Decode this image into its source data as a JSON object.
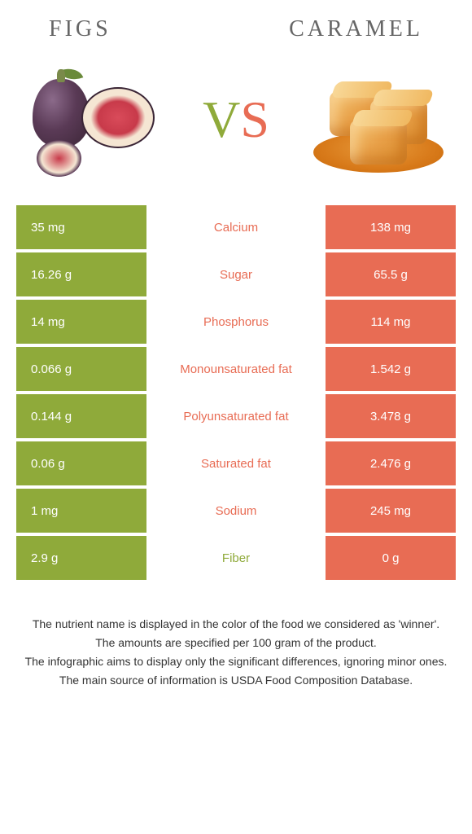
{
  "left_title": "Figs",
  "right_title": "Caramel",
  "vs": {
    "v": "V",
    "s": "S"
  },
  "colors": {
    "green": "#8faa3a",
    "orange": "#e86c54",
    "mid_green_text": "#8faa3a",
    "mid_orange_text": "#e86c54"
  },
  "rows": [
    {
      "left": "35 mg",
      "label": "Calcium",
      "right": "138 mg",
      "winner": "right"
    },
    {
      "left": "16.26 g",
      "label": "Sugar",
      "right": "65.5 g",
      "winner": "right"
    },
    {
      "left": "14 mg",
      "label": "Phosphorus",
      "right": "114 mg",
      "winner": "right"
    },
    {
      "left": "0.066 g",
      "label": "Monounsaturated fat",
      "right": "1.542 g",
      "winner": "right"
    },
    {
      "left": "0.144 g",
      "label": "Polyunsaturated fat",
      "right": "3.478 g",
      "winner": "right"
    },
    {
      "left": "0.06 g",
      "label": "Saturated fat",
      "right": "2.476 g",
      "winner": "right"
    },
    {
      "left": "1 mg",
      "label": "Sodium",
      "right": "245 mg",
      "winner": "right"
    },
    {
      "left": "2.9 g",
      "label": "Fiber",
      "right": "0 g",
      "winner": "left"
    }
  ],
  "footer": [
    "The nutrient name is displayed in the color of the food we considered as 'winner'.",
    "The amounts are specified per 100 gram of the product.",
    "The infographic aims to display only the significant differences, ignoring minor ones.",
    "The main source of information is USDA Food Composition Database."
  ]
}
